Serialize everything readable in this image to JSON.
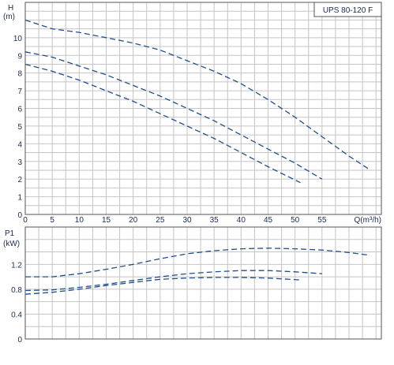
{
  "chart_data": [
    {
      "type": "line",
      "title": "UPS 80-120 F",
      "ylabel": "H",
      "yunit": "(m)",
      "xlabel": "Q(m³/h)",
      "xlim": [
        0,
        66
      ],
      "ylim": [
        0,
        12
      ],
      "xticks": [
        0,
        5,
        10,
        15,
        20,
        25,
        30,
        35,
        40,
        45,
        50,
        55
      ],
      "yticks": [
        0,
        1,
        2,
        3,
        4,
        5,
        6,
        7,
        8,
        9,
        10
      ],
      "grid": true,
      "line_color": "#1f4e8c",
      "series": [
        {
          "x": [
            0,
            5,
            10,
            15,
            20,
            25,
            30,
            35,
            40,
            45,
            50,
            55,
            60,
            63.5
          ],
          "y": [
            11.0,
            10.5,
            10.3,
            10.0,
            9.7,
            9.3,
            8.7,
            8.1,
            7.4,
            6.5,
            5.5,
            4.4,
            3.3,
            2.6
          ]
        },
        {
          "x": [
            0,
            5,
            10,
            15,
            20,
            25,
            30,
            35,
            40,
            45,
            50,
            55
          ],
          "y": [
            9.2,
            8.9,
            8.4,
            7.9,
            7.3,
            6.7,
            6.0,
            5.3,
            4.5,
            3.7,
            2.9,
            2.0
          ]
        },
        {
          "x": [
            0,
            5,
            10,
            15,
            20,
            25,
            30,
            35,
            40,
            45,
            51
          ],
          "y": [
            8.5,
            8.1,
            7.6,
            7.0,
            6.4,
            5.7,
            5.0,
            4.3,
            3.5,
            2.7,
            1.8
          ]
        }
      ]
    },
    {
      "type": "line",
      "ylabel": "P1",
      "yunit": "(kW)",
      "xlim": [
        0,
        66
      ],
      "ylim": [
        0,
        1.8
      ],
      "yticks": [
        0,
        0.4,
        0.8,
        1.2
      ],
      "ytick_labels": [
        "0",
        "0.4",
        "0.8",
        "1.2"
      ],
      "grid": true,
      "line_color": "#1f4e8c",
      "series": [
        {
          "x": [
            0,
            5,
            10,
            15,
            20,
            25,
            30,
            35,
            40,
            45,
            50,
            55,
            60,
            63.5
          ],
          "y": [
            1.0,
            1.0,
            1.05,
            1.12,
            1.2,
            1.29,
            1.37,
            1.42,
            1.45,
            1.46,
            1.45,
            1.43,
            1.39,
            1.35
          ]
        },
        {
          "x": [
            0,
            5,
            10,
            15,
            20,
            25,
            30,
            35,
            40,
            45,
            50,
            55
          ],
          "y": [
            0.78,
            0.79,
            0.83,
            0.88,
            0.94,
            1.0,
            1.05,
            1.08,
            1.1,
            1.1,
            1.08,
            1.05
          ]
        },
        {
          "x": [
            0,
            5,
            10,
            15,
            20,
            25,
            30,
            35,
            40,
            45,
            51
          ],
          "y": [
            0.72,
            0.75,
            0.8,
            0.86,
            0.91,
            0.96,
            0.98,
            0.99,
            0.99,
            0.98,
            0.95
          ]
        }
      ]
    }
  ]
}
